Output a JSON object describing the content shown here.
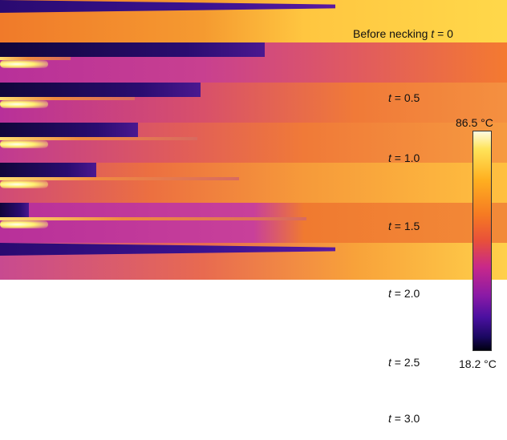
{
  "panels": [
    {
      "prefix": "Before necking",
      "symbol": "t",
      "time": "= 0"
    },
    {
      "symbol": "t",
      "time": "= 0.5"
    },
    {
      "symbol": "t",
      "time": "= 1.0"
    },
    {
      "symbol": "t",
      "time": "= 1.5"
    },
    {
      "symbol": "t",
      "time": "= 2.0"
    },
    {
      "symbol": "t",
      "time": "= 2.5"
    },
    {
      "symbol": "t",
      "time": "= 3.0"
    }
  ],
  "colorbar": {
    "max_label": "86.5 °C",
    "min_label": "18.2 °C"
  }
}
